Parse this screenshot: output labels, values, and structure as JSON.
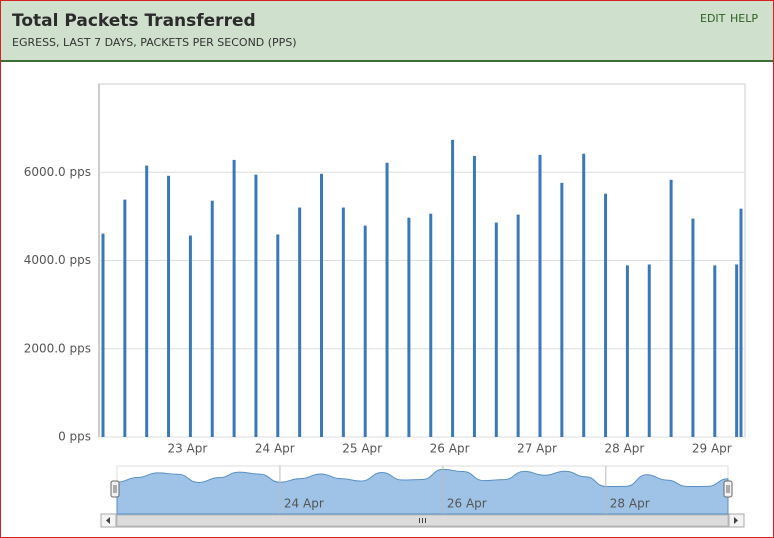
{
  "header": {
    "title": "Total Packets Transferred",
    "subtitle": "EGRESS, LAST 7 DAYS, PACKETS PER SECOND (PPS)",
    "links": [
      "EDIT",
      "HELP"
    ]
  },
  "chart_data": {
    "type": "bar",
    "categories": [
      null,
      null,
      null,
      null,
      "23 Apr",
      null,
      null,
      null,
      "24 Apr",
      null,
      null,
      null,
      "25 Apr",
      null,
      null,
      null,
      "26 Apr",
      null,
      null,
      null,
      "27 Apr",
      null,
      null,
      null,
      "28 Apr",
      null,
      null,
      null,
      "29 Apr",
      null,
      null
    ],
    "values": [
      4610,
      5380,
      6150,
      5920,
      4565,
      5355,
      6280,
      5945,
      4590,
      5200,
      5965,
      5200,
      4790,
      6215,
      4970,
      5060,
      6735,
      6370,
      4860,
      5040,
      6395,
      5760,
      6420,
      5515,
      3890,
      3910,
      5830,
      4950,
      3890,
      3910,
      5175
    ],
    "color": "#3b78b8",
    "ylim": [
      0,
      8000
    ],
    "yticks": [
      {
        "value": 0,
        "label": "0 pps"
      },
      {
        "value": 2000,
        "label": "2000.0 pps"
      },
      {
        "value": 4000,
        "label": "4000.0 pps"
      },
      {
        "value": 6000,
        "label": "6000.0 pps"
      }
    ],
    "grid": true,
    "navigator": {
      "labels": [
        "24 Apr",
        "26 Apr",
        "28 Apr"
      ],
      "color": "#9ec3e6"
    }
  }
}
